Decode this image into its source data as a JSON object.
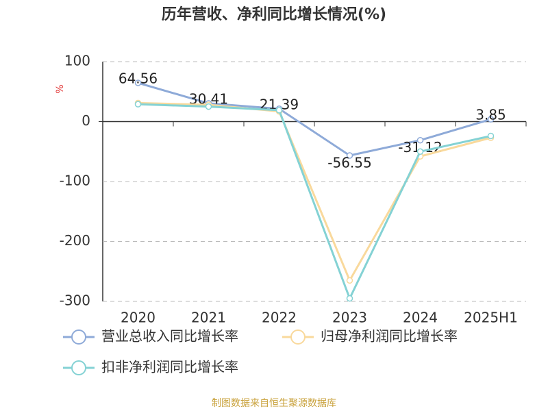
{
  "chart_data": {
    "type": "line",
    "title": "历年营收、净利同比增长情况(%)",
    "y_label": "%",
    "categories": [
      "2020",
      "2021",
      "2022",
      "2023",
      "2024",
      "2025H1"
    ],
    "series": [
      {
        "name": "营业总收入同比增长率",
        "color": "#8eaad8",
        "values": [
          64.56,
          30.41,
          21.39,
          -56.55,
          -31.12,
          3.85
        ],
        "data_labels": true
      },
      {
        "name": "归母净利润同比增长率",
        "color": "#f9d99c",
        "values": [
          31,
          28,
          17,
          -265,
          -58,
          -27
        ]
      },
      {
        "name": "扣非净利润同比增长率",
        "color": "#84d2d4",
        "values": [
          29,
          25,
          19,
          -295,
          -50,
          -24
        ]
      }
    ],
    "ylim": [
      -300,
      100
    ],
    "yticks": [
      -300,
      -200,
      -100,
      0,
      100
    ],
    "grid": true,
    "source": "制图数据来自恒生聚源数据库"
  }
}
